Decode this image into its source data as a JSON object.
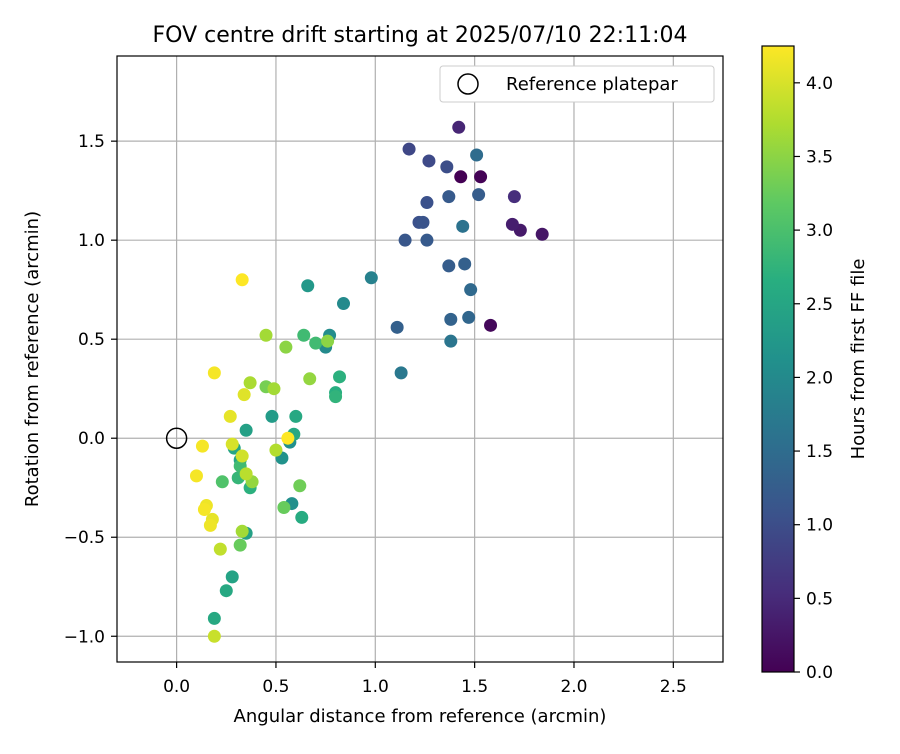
{
  "chart_data": {
    "type": "scatter",
    "title": "FOV centre drift starting at 2025/07/10 22:11:04",
    "xlabel": "Angular distance from reference (arcmin)",
    "ylabel": "Rotation from reference (arcmin)",
    "xlim": [
      -0.3,
      2.75
    ],
    "ylim": [
      -1.13,
      1.93
    ],
    "xticks": [
      0.0,
      0.5,
      1.0,
      1.5,
      2.0,
      2.5
    ],
    "yticks": [
      -1.0,
      -0.5,
      0.0,
      0.5,
      1.0,
      1.5
    ],
    "xtick_labels": [
      "0.0",
      "0.5",
      "1.0",
      "1.5",
      "2.0",
      "2.5"
    ],
    "ytick_labels": [
      "−1.0",
      "−0.5",
      "0.0",
      "0.5",
      "1.0",
      "1.5"
    ],
    "grid": true,
    "legend": {
      "position": "upper-right",
      "entries": [
        {
          "label": "Reference platepar",
          "marker": "open-circle",
          "x": 0.0,
          "y": 0.0
        }
      ]
    },
    "colorbar": {
      "label": "Hours from first FF file",
      "colormap": "viridis",
      "range": [
        0.0,
        4.25
      ],
      "ticks": [
        0.0,
        0.5,
        1.0,
        1.5,
        2.0,
        2.5,
        3.0,
        3.5,
        4.0
      ],
      "tick_labels": [
        "0.0",
        "0.5",
        "1.0",
        "1.5",
        "2.0",
        "2.5",
        "3.0",
        "3.5",
        "4.0"
      ]
    },
    "points": [
      {
        "x": 1.43,
        "y": 1.32,
        "h": 0.0
      },
      {
        "x": 1.53,
        "y": 1.32,
        "h": 0.03
      },
      {
        "x": 1.58,
        "y": 0.57,
        "h": 0.08
      },
      {
        "x": 1.84,
        "y": 1.03,
        "h": 0.25
      },
      {
        "x": 1.73,
        "y": 1.05,
        "h": 0.3
      },
      {
        "x": 1.69,
        "y": 1.08,
        "h": 0.35
      },
      {
        "x": 1.42,
        "y": 1.57,
        "h": 0.45
      },
      {
        "x": 1.7,
        "y": 1.22,
        "h": 0.55
      },
      {
        "x": 1.17,
        "y": 1.46,
        "h": 0.9
      },
      {
        "x": 1.27,
        "y": 1.4,
        "h": 0.95
      },
      {
        "x": 1.36,
        "y": 1.37,
        "h": 1.0
      },
      {
        "x": 1.26,
        "y": 1.19,
        "h": 1.05
      },
      {
        "x": 1.22,
        "y": 1.09,
        "h": 1.05
      },
      {
        "x": 1.24,
        "y": 1.09,
        "h": 1.1
      },
      {
        "x": 1.15,
        "y": 1.0,
        "h": 1.15
      },
      {
        "x": 1.26,
        "y": 1.0,
        "h": 1.2
      },
      {
        "x": 1.37,
        "y": 1.22,
        "h": 1.2
      },
      {
        "x": 1.52,
        "y": 1.23,
        "h": 1.25
      },
      {
        "x": 1.37,
        "y": 0.87,
        "h": 1.25
      },
      {
        "x": 1.45,
        "y": 0.88,
        "h": 1.3
      },
      {
        "x": 1.11,
        "y": 0.56,
        "h": 1.3
      },
      {
        "x": 1.38,
        "y": 0.6,
        "h": 1.35
      },
      {
        "x": 1.47,
        "y": 0.61,
        "h": 1.4
      },
      {
        "x": 1.48,
        "y": 0.75,
        "h": 1.45
      },
      {
        "x": 1.51,
        "y": 1.43,
        "h": 1.5
      },
      {
        "x": 1.44,
        "y": 1.07,
        "h": 1.6
      },
      {
        "x": 1.38,
        "y": 0.49,
        "h": 1.65
      },
      {
        "x": 1.13,
        "y": 0.33,
        "h": 1.7
      },
      {
        "x": 0.98,
        "y": 0.81,
        "h": 1.85
      },
      {
        "x": 0.84,
        "y": 0.68,
        "h": 2.0
      },
      {
        "x": 0.75,
        "y": 0.46,
        "h": 2.0
      },
      {
        "x": 0.77,
        "y": 0.52,
        "h": 2.05
      },
      {
        "x": 0.66,
        "y": 0.77,
        "h": 2.25
      },
      {
        "x": 0.58,
        "y": -0.33,
        "h": 2.1
      },
      {
        "x": 0.57,
        "y": -0.02,
        "h": 2.1
      },
      {
        "x": 0.53,
        "y": -0.1,
        "h": 2.15
      },
      {
        "x": 0.48,
        "y": 0.11,
        "h": 2.3
      },
      {
        "x": 0.35,
        "y": 0.04,
        "h": 2.4
      },
      {
        "x": 0.35,
        "y": -0.48,
        "h": 2.4
      },
      {
        "x": 0.32,
        "y": -0.11,
        "h": 2.45
      },
      {
        "x": 0.29,
        "y": -0.05,
        "h": 2.5
      },
      {
        "x": 0.28,
        "y": -0.7,
        "h": 2.45
      },
      {
        "x": 0.25,
        "y": -0.77,
        "h": 2.55
      },
      {
        "x": 0.19,
        "y": -0.91,
        "h": 2.55
      },
      {
        "x": 0.6,
        "y": 0.11,
        "h": 2.55
      },
      {
        "x": 0.59,
        "y": 0.02,
        "h": 2.55
      },
      {
        "x": 0.63,
        "y": -0.4,
        "h": 2.6
      },
      {
        "x": 0.8,
        "y": 0.23,
        "h": 2.65
      },
      {
        "x": 0.82,
        "y": 0.31,
        "h": 2.7
      },
      {
        "x": 0.8,
        "y": 0.21,
        "h": 2.75
      },
      {
        "x": 0.37,
        "y": -0.25,
        "h": 2.7
      },
      {
        "x": 0.31,
        "y": -0.2,
        "h": 2.8
      },
      {
        "x": 0.32,
        "y": -0.14,
        "h": 2.9
      },
      {
        "x": 0.7,
        "y": 0.48,
        "h": 2.9
      },
      {
        "x": 0.64,
        "y": 0.52,
        "h": 2.9
      },
      {
        "x": 0.23,
        "y": -0.22,
        "h": 3.05
      },
      {
        "x": 0.32,
        "y": -0.54,
        "h": 3.25
      },
      {
        "x": 0.54,
        "y": -0.35,
        "h": 3.25
      },
      {
        "x": 0.62,
        "y": -0.24,
        "h": 3.3
      },
      {
        "x": 0.45,
        "y": 0.26,
        "h": 3.35
      },
      {
        "x": 0.76,
        "y": 0.49,
        "h": 3.5
      },
      {
        "x": 0.67,
        "y": 0.3,
        "h": 3.55
      },
      {
        "x": 0.55,
        "y": 0.46,
        "h": 3.5
      },
      {
        "x": 0.38,
        "y": -0.22,
        "h": 3.55
      },
      {
        "x": 0.45,
        "y": 0.52,
        "h": 3.65
      },
      {
        "x": 0.49,
        "y": 0.25,
        "h": 3.65
      },
      {
        "x": 0.37,
        "y": 0.28,
        "h": 3.7
      },
      {
        "x": 0.33,
        "y": -0.47,
        "h": 3.65
      },
      {
        "x": 0.5,
        "y": -0.06,
        "h": 3.75
      },
      {
        "x": 0.35,
        "y": -0.18,
        "h": 3.8
      },
      {
        "x": 0.22,
        "y": -0.56,
        "h": 3.85
      },
      {
        "x": 0.19,
        "y": -1.0,
        "h": 3.9
      },
      {
        "x": 0.33,
        "y": -0.09,
        "h": 3.95
      },
      {
        "x": 0.28,
        "y": -0.03,
        "h": 4.0
      },
      {
        "x": 0.34,
        "y": 0.22,
        "h": 4.05
      },
      {
        "x": 0.27,
        "y": 0.11,
        "h": 4.1
      },
      {
        "x": 0.18,
        "y": -0.41,
        "h": 4.1
      },
      {
        "x": 0.15,
        "y": -0.34,
        "h": 4.15
      },
      {
        "x": 0.17,
        "y": -0.44,
        "h": 4.15
      },
      {
        "x": 0.14,
        "y": -0.36,
        "h": 4.2
      },
      {
        "x": 0.13,
        "y": -0.04,
        "h": 4.2
      },
      {
        "x": 0.1,
        "y": -0.19,
        "h": 4.2
      },
      {
        "x": 0.19,
        "y": 0.33,
        "h": 4.2
      },
      {
        "x": 0.33,
        "y": 0.8,
        "h": 4.25
      },
      {
        "x": 0.56,
        "y": 0.0,
        "h": 4.25
      }
    ]
  }
}
